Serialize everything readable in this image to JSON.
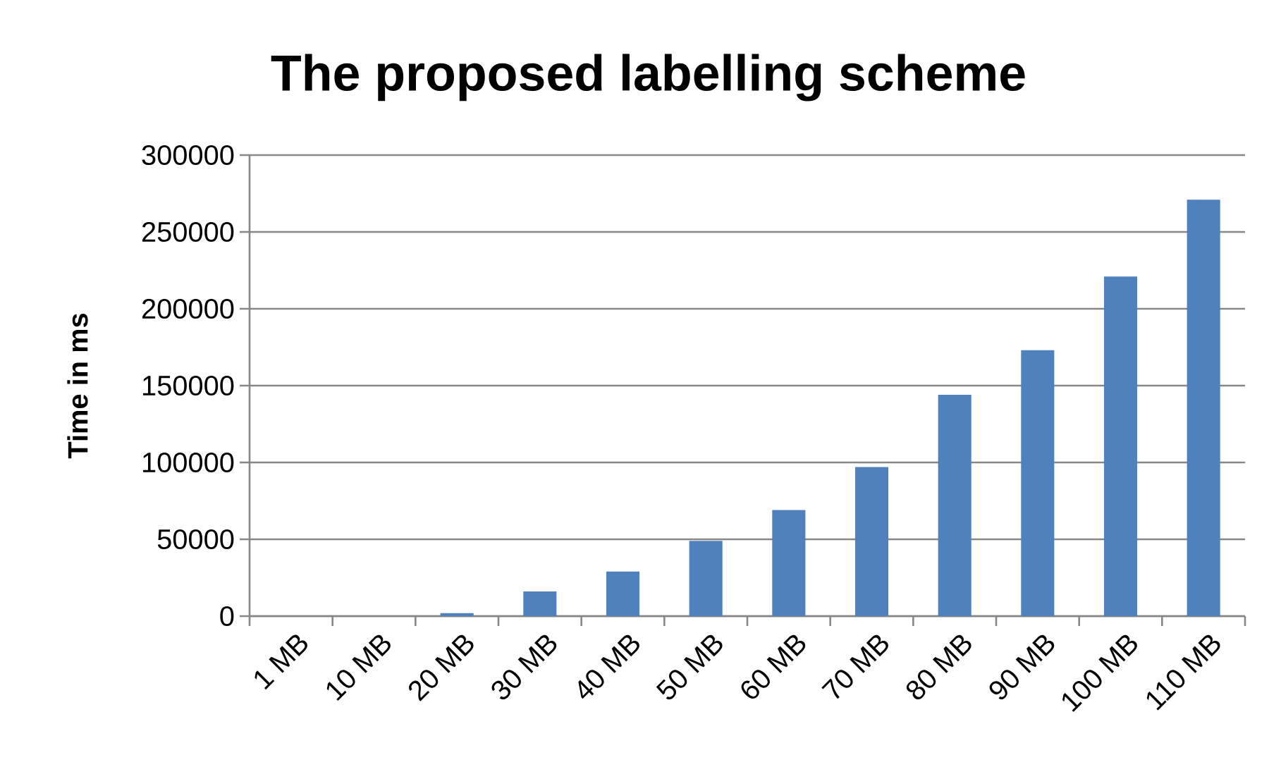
{
  "chart_data": {
    "type": "bar",
    "title": "The proposed labelling scheme",
    "ylabel": "Time in ms",
    "categories": [
      "1 MB",
      "10 MB",
      "20 MB",
      "30 MB",
      "40 MB",
      "50 MB",
      "60 MB",
      "70 MB",
      "80 MB",
      "90 MB",
      "100 MB",
      "110 MB"
    ],
    "values": [
      0,
      0,
      2000,
      16000,
      29000,
      49000,
      69000,
      97000,
      144000,
      173000,
      221000,
      271000
    ],
    "color": "#4f81bd",
    "ylim": [
      0,
      300000
    ],
    "yticks": [
      0,
      50000,
      100000,
      150000,
      200000,
      250000,
      300000
    ],
    "grid": "y"
  }
}
